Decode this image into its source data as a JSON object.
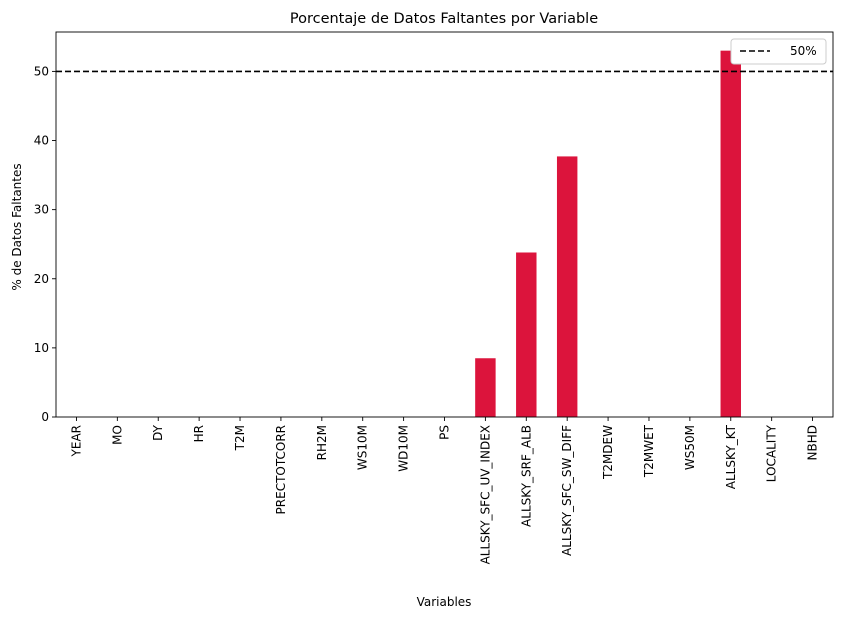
{
  "chart_data": {
    "type": "bar",
    "title": "Porcentaje de Datos Faltantes por Variable",
    "xlabel": "Variables",
    "ylabel": "% de Datos Faltantes",
    "categories": [
      "YEAR",
      "MO",
      "DY",
      "HR",
      "T2M",
      "PRECTOTCORR",
      "RH2M",
      "WS10M",
      "WD10M",
      "PS",
      "ALLSKY_SFC_UV_INDEX",
      "ALLSKY_SRF_ALB",
      "ALLSKY_SFC_SW_DIFF",
      "T2MDEW",
      "T2MWET",
      "WS50M",
      "ALLSKY_KT",
      "LOCALITY",
      "NBHD"
    ],
    "values": [
      0,
      0,
      0,
      0,
      0,
      0,
      0,
      0,
      0,
      0,
      8.5,
      23.8,
      37.7,
      0,
      0,
      0,
      53.0,
      0,
      0
    ],
    "ylim": [
      0,
      55.7
    ],
    "yticks": [
      0,
      10,
      20,
      30,
      40,
      50
    ],
    "bar_color": "#dc143c",
    "reference_line": {
      "value": 50,
      "label": "50%",
      "color": "#000000",
      "style": "dashed"
    },
    "legend": {
      "position": "top-right",
      "entries": [
        "50%"
      ]
    },
    "grid": false
  }
}
